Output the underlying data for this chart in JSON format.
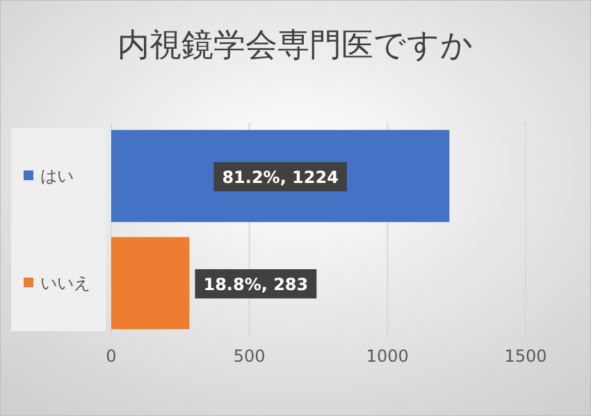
{
  "chart_data": {
    "type": "bar",
    "orientation": "horizontal",
    "title": "内視鏡学会専門医ですか",
    "categories": [
      null,
      null
    ],
    "series": [
      {
        "name": "はい",
        "color": "#4472c4",
        "values": [
          1224,
          null
        ],
        "value_labels": [
          "81.2%, 1224",
          null
        ]
      },
      {
        "name": "いいえ",
        "color": "#ed7d31",
        "values": [
          null,
          283
        ],
        "value_labels": [
          null,
          "18.8%, 283"
        ]
      }
    ],
    "xlim": [
      0,
      1500
    ],
    "xticks": [
      0,
      500,
      1000,
      1500
    ],
    "grid": "x",
    "legend": "left"
  }
}
